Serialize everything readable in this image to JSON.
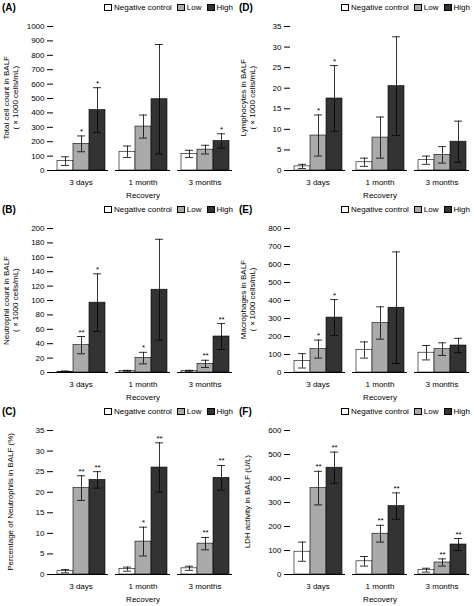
{
  "chart_data": [
    {
      "type": "bar",
      "title": "(A)",
      "xlabel": "Recovery",
      "ylabel": "Total cell count in BALF\n(×1000 cells/mL)",
      "categories": [
        "3 days",
        "1 month",
        "3 months"
      ],
      "series": [
        {
          "name": "Negative control",
          "color": "#ffffff",
          "values": [
            65,
            130,
            115
          ],
          "errors": [
            30,
            40,
            25
          ]
        },
        {
          "name": "Low",
          "color": "#aaaaaa",
          "values": [
            185,
            305,
            145
          ],
          "errors": [
            55,
            80,
            30
          ]
        },
        {
          "name": "High",
          "color": "#333333",
          "values": [
            420,
            495,
            205
          ],
          "errors": [
            155,
            380,
            50
          ]
        }
      ],
      "ylim": [
        0,
        1000
      ],
      "yticks": [
        0,
        100,
        200,
        300,
        400,
        500,
        600,
        700,
        800,
        900,
        1000
      ],
      "legend": "upper right",
      "annotations": [
        {
          "series": "Low",
          "category": "3 days",
          "text": "*"
        },
        {
          "series": "High",
          "category": "3 days",
          "text": "*"
        },
        {
          "series": "High",
          "category": "3 months",
          "text": "*"
        }
      ]
    },
    {
      "type": "bar",
      "title": "(B)",
      "xlabel": "Recovery",
      "ylabel": "Neutrophil count in BALF\n(×1000 cells/mL)",
      "categories": [
        "3 days",
        "1 month",
        "3 months"
      ],
      "series": [
        {
          "name": "Negative control",
          "color": "#ffffff",
          "values": [
            1,
            2,
            2
          ],
          "errors": [
            1,
            1,
            1
          ]
        },
        {
          "name": "Low",
          "color": "#aaaaaa",
          "values": [
            38,
            20,
            12
          ],
          "errors": [
            12,
            8,
            5
          ]
        },
        {
          "name": "High",
          "color": "#333333",
          "values": [
            97,
            115,
            50
          ],
          "errors": [
            40,
            70,
            18
          ]
        }
      ],
      "ylim": [
        0,
        200
      ],
      "yticks": [
        0,
        20,
        40,
        60,
        80,
        100,
        120,
        140,
        160,
        180,
        200
      ],
      "legend": "upper right",
      "annotations": [
        {
          "series": "Low",
          "category": "3 days",
          "text": "**"
        },
        {
          "series": "Low",
          "category": "1 month",
          "text": "*"
        },
        {
          "series": "Low",
          "category": "3 months",
          "text": "**"
        },
        {
          "series": "High",
          "category": "3 days",
          "text": "*"
        },
        {
          "series": "High",
          "category": "3 months",
          "text": "**"
        }
      ]
    },
    {
      "type": "bar",
      "title": "(C)",
      "xlabel": "Recovery",
      "ylabel": "Percentage of Neutrophils in BALF (%)",
      "categories": [
        "3 days",
        "1 month",
        "3 months"
      ],
      "series": [
        {
          "name": "Negative control",
          "color": "#ffffff",
          "values": [
            0.8,
            1.3,
            1.5
          ],
          "errors": [
            0.4,
            0.5,
            0.5
          ]
        },
        {
          "name": "Low",
          "color": "#aaaaaa",
          "values": [
            21,
            8,
            7.5
          ],
          "errors": [
            3,
            3.5,
            1.5
          ]
        },
        {
          "name": "High",
          "color": "#333333",
          "values": [
            23,
            26,
            23.5
          ],
          "errors": [
            2,
            6,
            3
          ]
        }
      ],
      "ylim": [
        0,
        35
      ],
      "yticks": [
        0,
        5,
        10,
        15,
        20,
        25,
        30,
        35
      ],
      "legend": "upper right",
      "annotations": [
        {
          "series": "Low",
          "category": "3 days",
          "text": "**"
        },
        {
          "series": "Low",
          "category": "1 month",
          "text": "*"
        },
        {
          "series": "Low",
          "category": "3 months",
          "text": "**"
        },
        {
          "series": "High",
          "category": "3 days",
          "text": "**"
        },
        {
          "series": "High",
          "category": "1 month",
          "text": "**"
        },
        {
          "series": "High",
          "category": "3 months",
          "text": "**"
        }
      ]
    },
    {
      "type": "bar",
      "title": "(D)",
      "xlabel": "Recovery",
      "ylabel": "Lymphocytes in BALF\n(×1000 cells/mL)",
      "categories": [
        "3 days",
        "1 month",
        "3 months"
      ],
      "series": [
        {
          "name": "Negative control",
          "color": "#ffffff",
          "values": [
            1,
            2,
            2.5
          ],
          "errors": [
            0.5,
            1,
            1
          ]
        },
        {
          "name": "Low",
          "color": "#aaaaaa",
          "values": [
            8.5,
            8,
            3.8
          ],
          "errors": [
            5,
            5,
            2
          ]
        },
        {
          "name": "High",
          "color": "#333333",
          "values": [
            17.5,
            20.5,
            7
          ],
          "errors": [
            8,
            12,
            5
          ]
        }
      ],
      "ylim": [
        0,
        35
      ],
      "yticks": [
        0,
        5,
        10,
        15,
        20,
        25,
        30,
        35
      ],
      "legend": "upper right",
      "annotations": [
        {
          "series": "Low",
          "category": "3 days",
          "text": "*"
        },
        {
          "series": "High",
          "category": "3 days",
          "text": "*"
        }
      ]
    },
    {
      "type": "bar",
      "title": "(E)",
      "xlabel": "Recovery",
      "ylabel": "Macrophages in BALF\n(×1000 cells/mL)",
      "categories": [
        "3 days",
        "1 month",
        "3 months"
      ],
      "series": [
        {
          "name": "Negative control",
          "color": "#ffffff",
          "values": [
            65,
            125,
            110
          ],
          "errors": [
            40,
            45,
            40
          ]
        },
        {
          "name": "Low",
          "color": "#aaaaaa",
          "values": [
            130,
            275,
            130
          ],
          "errors": [
            50,
            90,
            35
          ]
        },
        {
          "name": "High",
          "color": "#333333",
          "values": [
            305,
            360,
            150
          ],
          "errors": [
            100,
            310,
            40
          ]
        }
      ],
      "ylim": [
        0,
        800
      ],
      "yticks": [
        0,
        100,
        200,
        300,
        400,
        500,
        600,
        700,
        800
      ],
      "legend": "upper right",
      "annotations": [
        {
          "series": "Low",
          "category": "3 days",
          "text": "*"
        },
        {
          "series": "High",
          "category": "3 days",
          "text": "*"
        }
      ]
    },
    {
      "type": "bar",
      "title": "(F)",
      "xlabel": "Recovery",
      "ylabel": "LDH activity in BALF (U/L)",
      "categories": [
        "3 days",
        "1 month",
        "3 months"
      ],
      "series": [
        {
          "name": "Negative control",
          "color": "#ffffff",
          "values": [
            95,
            55,
            18
          ],
          "errors": [
            40,
            20,
            8
          ]
        },
        {
          "name": "Low",
          "color": "#aaaaaa",
          "values": [
            360,
            170,
            50
          ],
          "errors": [
            70,
            35,
            15
          ]
        },
        {
          "name": "High",
          "color": "#333333",
          "values": [
            445,
            285,
            125
          ],
          "errors": [
            65,
            55,
            25
          ]
        }
      ],
      "ylim": [
        0,
        600
      ],
      "yticks": [
        0,
        100,
        200,
        300,
        400,
        500,
        600
      ],
      "legend": "upper right",
      "annotations": [
        {
          "series": "Low",
          "category": "3 days",
          "text": "**"
        },
        {
          "series": "Low",
          "category": "1 month",
          "text": "**"
        },
        {
          "series": "Low",
          "category": "3 months",
          "text": "**"
        },
        {
          "series": "High",
          "category": "3 days",
          "text": "**"
        },
        {
          "series": "High",
          "category": "1 month",
          "text": "**"
        },
        {
          "series": "High",
          "category": "3 months",
          "text": "**"
        }
      ]
    }
  ]
}
